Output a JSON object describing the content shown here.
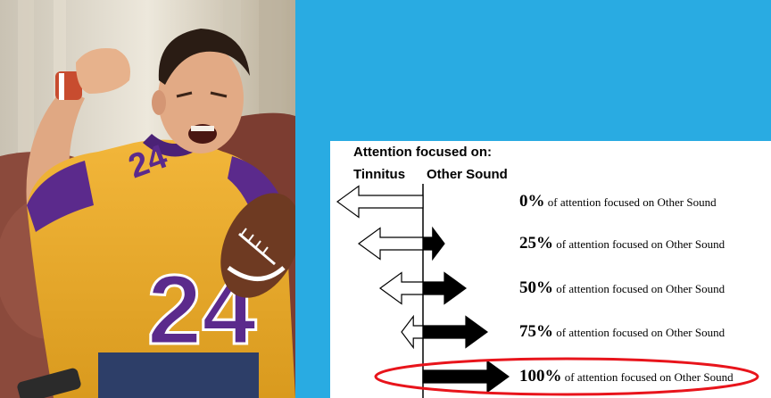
{
  "background_color": "#29abe2",
  "photo": {
    "description_icon": "football-fan-cheering-photo",
    "jersey_number": "24"
  },
  "diagram": {
    "title": "Attention focused on:",
    "left_label": "Tinnitus",
    "right_label": "Other Sound",
    "rows": [
      {
        "percent": "0%",
        "caption": " of attention focused on Other Sound",
        "other_sound_share": 0
      },
      {
        "percent": "25%",
        "caption": " of attention focused on Other Sound",
        "other_sound_share": 0.25
      },
      {
        "percent": "50%",
        "caption": " of attention focused on Other Sound",
        "other_sound_share": 0.5
      },
      {
        "percent": "75%",
        "caption": " of attention focused on Other Sound",
        "other_sound_share": 0.75
      },
      {
        "percent": "100%",
        "caption": " of attention focused on Other Sound",
        "other_sound_share": 1.0,
        "highlighted": true
      }
    ],
    "highlight_color": "#e8141b"
  }
}
